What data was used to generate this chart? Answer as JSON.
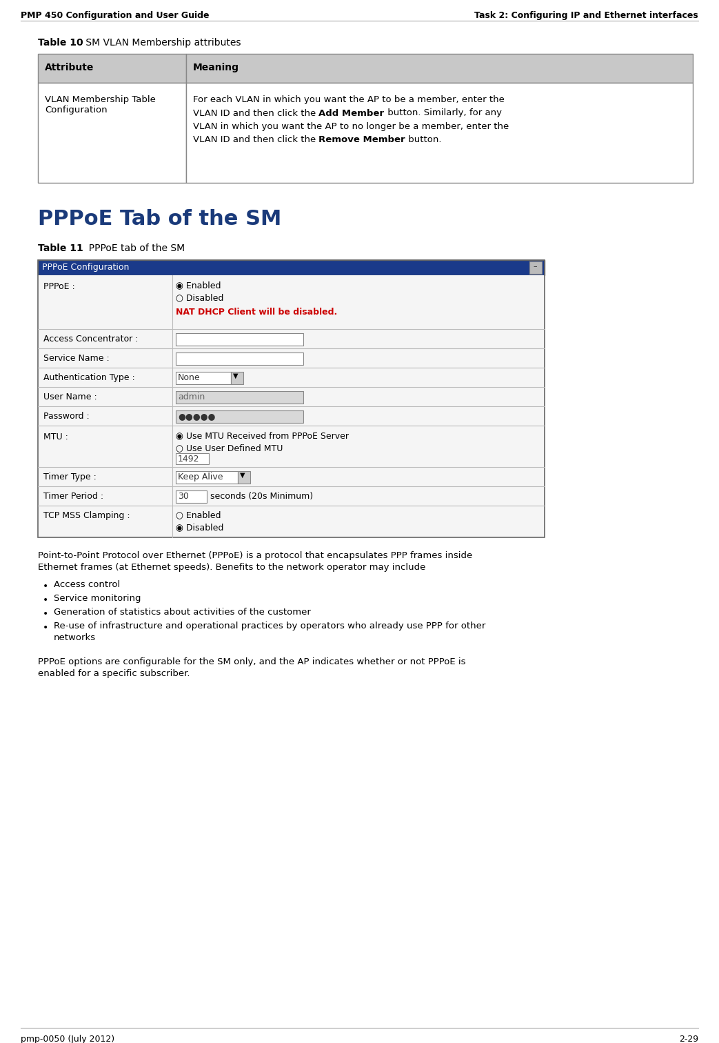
{
  "header_left": "PMP 450 Configuration and User Guide",
  "header_right": "Task 2: Configuring IP and Ethernet interfaces",
  "footer_left": "pmp-0050 (July 2012)",
  "footer_right": "2-29",
  "table10_title_bold": "Table 10",
  "table10_title_normal": " SM VLAN Membership attributes",
  "table10_headers": [
    "Attribute",
    "Meaning"
  ],
  "table10_col1": "VLAN Membership Table\nConfiguration",
  "section_title": "PPPoE Tab of the SM",
  "table11_title_bold": "Table 11",
  "table11_title_normal": "  PPPoE tab of the SM",
  "body_text1_line1": "Point-to-Point Protocol over Ethernet (PPPoE) is a protocol that encapsulates PPP frames inside",
  "body_text1_line2": "Ethernet frames (at Ethernet speeds). Benefits to the network operator may include",
  "bullet_points": [
    "Access control",
    "Service monitoring",
    "Generation of statistics about activities of the customer",
    "Re-use of infrastructure and operational practices by operators who already use PPP for other\nnetworks"
  ],
  "body_text2_line1": "PPPoE options are configurable for the SM only, and the AP indicates whether or not PPPoE is",
  "body_text2_line2": "enabled for a specific subscriber.",
  "bg_color": "#ffffff",
  "header_line_color": "#aaaaaa",
  "table_border_color": "#888888",
  "table_header_bg": "#c8c8c8",
  "section_title_color": "#1a3a7a",
  "nat_dhcp_color": "#cc0000",
  "pppoe_title_bg": "#1a3a8a",
  "pppoe_bg": "#f0f0f0",
  "pppoe_field_bg": "#d8d8d8",
  "pppoe_row_sep": "#bbbbbb"
}
